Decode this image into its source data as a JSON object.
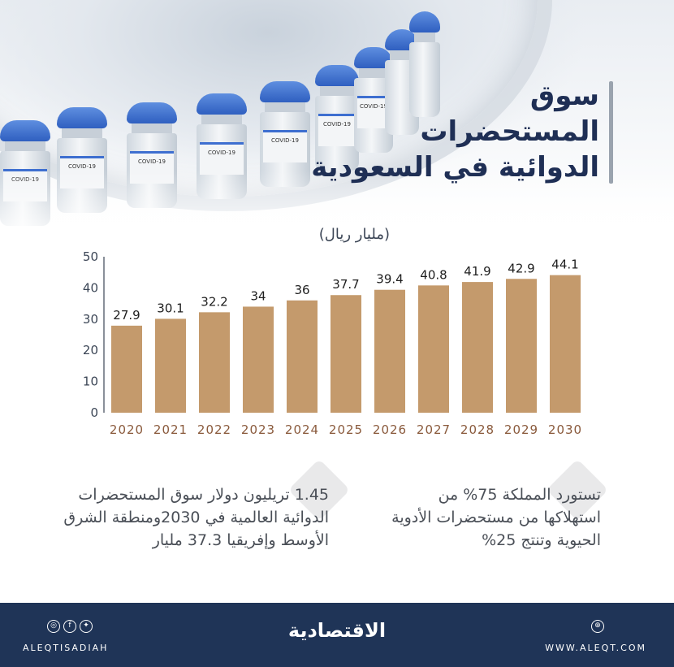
{
  "title_lines": [
    "سوق",
    "المستحضرات",
    "الدوائية في السعودية"
  ],
  "unit": "(مليار ريال)",
  "chart_data": {
    "type": "bar",
    "categories": [
      "2020",
      "2021",
      "2022",
      "2023",
      "2024",
      "2025",
      "2026",
      "2027",
      "2028",
      "2029",
      "2030"
    ],
    "values": [
      27.9,
      30.1,
      32.2,
      34,
      36,
      37.7,
      39.4,
      40.8,
      41.9,
      42.9,
      44.1
    ],
    "value_labels": [
      "27.9",
      "30.1",
      "32.2",
      "34",
      "36",
      "37.7",
      "39.4",
      "40.8",
      "41.9",
      "42.9",
      "44.1"
    ],
    "ylim": [
      0,
      50
    ],
    "yticks": [
      "0",
      "10",
      "20",
      "30",
      "40",
      "50"
    ],
    "grid": false,
    "bar_color": "#c49a6c",
    "title": "",
    "xlabel": "",
    "ylabel": ""
  },
  "notes": {
    "right": "تستورد المملكة 75% من استهلاكها من مستحضرات الأدوية الحيوية وتنتج 25%",
    "left": "1.45 تريليون دولار سوق المستحضرات الدوائية العالمية في 2030ومنطقة الشرق الأوسط وإفريقيا 37.3 مليار"
  },
  "vial_label": "COVID-19",
  "footer": {
    "handle": "ALEQTISADIAH",
    "logo": "الاقتصادية",
    "website": "WWW.ALEQT.COM",
    "icons": [
      "instagram-icon",
      "facebook-icon",
      "twitter-icon",
      "globe-icon"
    ]
  },
  "colors": {
    "footer_bg": "#1f3457",
    "title": "#1f2f55",
    "tick_x": "#8a5a3c"
  }
}
